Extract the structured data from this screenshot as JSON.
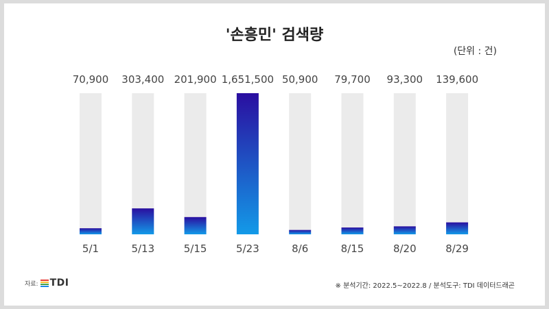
{
  "chart_data": {
    "type": "bar",
    "title": "'손흥민' 검색량",
    "unit_label": "(단위 : 건)",
    "categories": [
      "5/1",
      "5/13",
      "5/15",
      "5/23",
      "8/6",
      "8/15",
      "8/20",
      "8/29"
    ],
    "values": [
      70900,
      303400,
      201900,
      1651500,
      50900,
      79700,
      93300,
      139600
    ],
    "value_labels": [
      "70,900",
      "303,400",
      "201,900",
      "1,651,500",
      "50,900",
      "79,700",
      "93,300",
      "139,600"
    ],
    "bar_gradient": {
      "top": "#2a0ea0",
      "bottom": "#139ae8"
    },
    "track_color": "#ebebeb"
  },
  "source": {
    "prefix": "자료:",
    "logo_text": "TDI",
    "logo_colors": [
      "#e53935",
      "#fbc02d",
      "#43a047",
      "#1e88e5"
    ]
  },
  "footnote": "※ 분석기간: 2022.5~2022.8  / 분석도구: TDI 데이터드래곤"
}
